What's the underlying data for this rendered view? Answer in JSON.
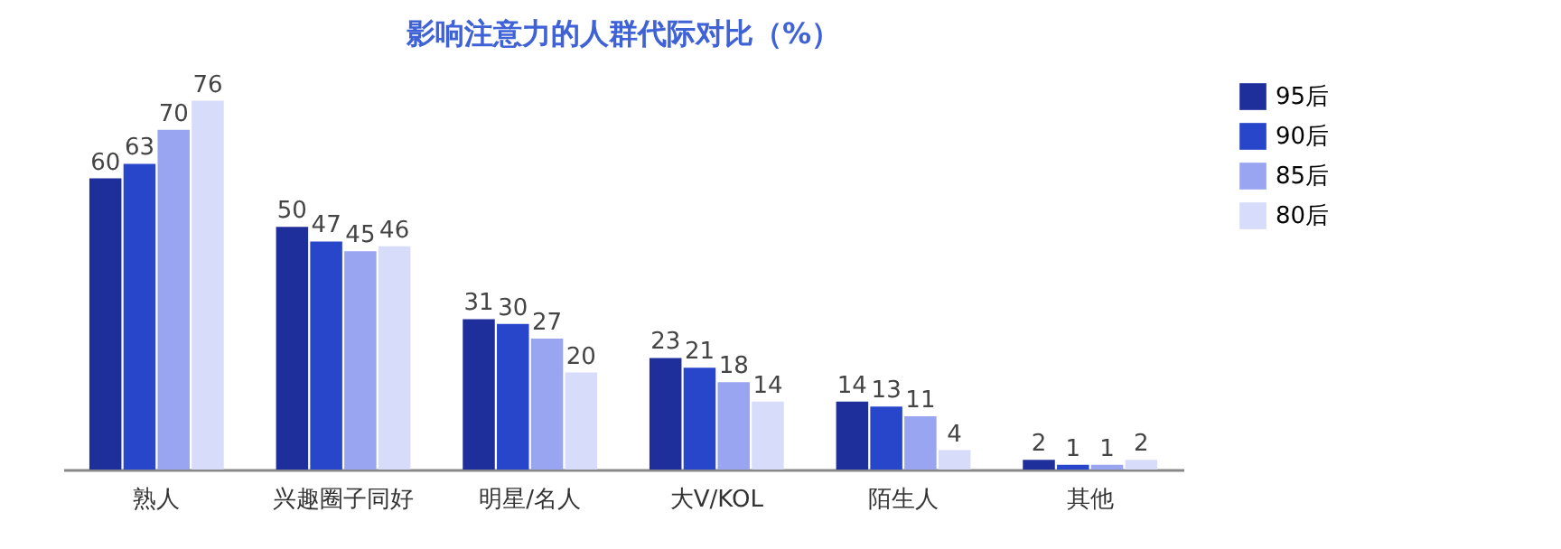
{
  "chart_data": {
    "type": "bar",
    "title": "影响注意力的人群代际对比（%）",
    "categories": [
      "熟人",
      "兴趣圈子同好",
      "明星/名人",
      "大V/KOL",
      "陌生人",
      "其他"
    ],
    "series": [
      {
        "name": "95后",
        "color": "#1e2f9c",
        "values": [
          60,
          50,
          31,
          23,
          14,
          2
        ]
      },
      {
        "name": "90后",
        "color": "#2846c9",
        "values": [
          63,
          47,
          30,
          21,
          13,
          1
        ]
      },
      {
        "name": "85后",
        "color": "#9aa5f1",
        "values": [
          70,
          45,
          27,
          18,
          11,
          1
        ]
      },
      {
        "name": "80后",
        "color": "#d7dcfa",
        "values": [
          76,
          46,
          20,
          14,
          4,
          2
        ]
      }
    ],
    "data_labels": true,
    "legend": "right",
    "grid": false
  }
}
